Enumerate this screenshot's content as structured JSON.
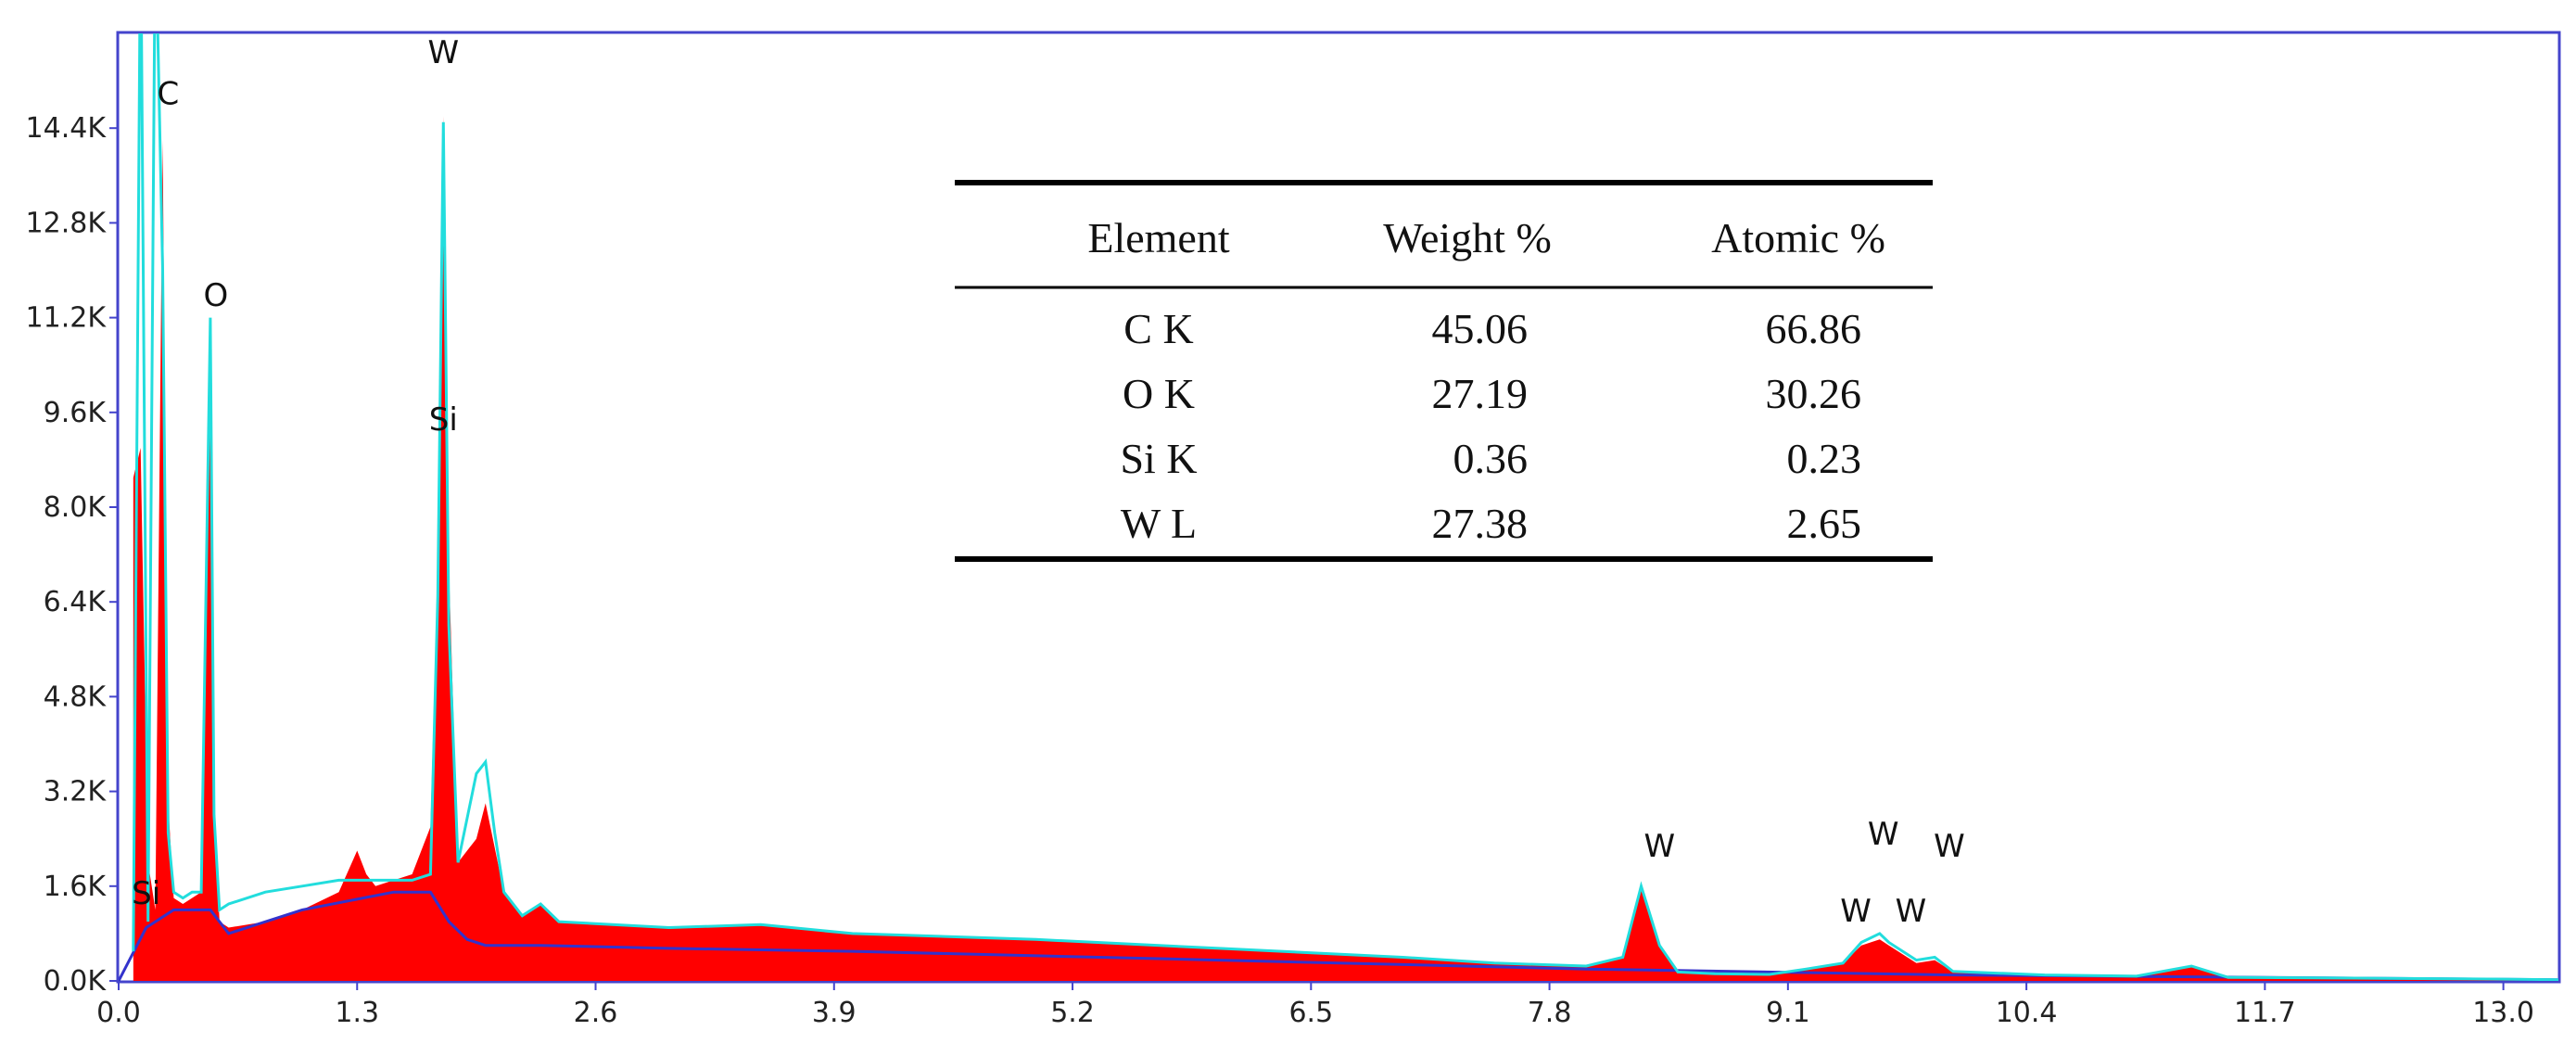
{
  "chart_data": {
    "type": "area",
    "title": "",
    "xlabel": "",
    "ylabel": "",
    "xlim": [
      0.0,
      13.3
    ],
    "ylim": [
      0,
      16000
    ],
    "grid": false,
    "x_ticks": [
      "0.0",
      "1.3",
      "2.6",
      "3.9",
      "5.2",
      "6.5",
      "7.8",
      "9.1",
      "10.4",
      "11.7",
      "13.0"
    ],
    "y_ticks": [
      "0.0K",
      "1.6K",
      "3.2K",
      "4.8K",
      "6.4K",
      "8.0K",
      "9.6K",
      "11.2K",
      "12.8K",
      "14.4K"
    ],
    "colors": {
      "spectrum": "#ff0000",
      "fit": "#22dddd",
      "background": "#3333cc",
      "frame": "#4444cc"
    },
    "spectrum": {
      "x": [
        0.08,
        0.12,
        0.16,
        0.2,
        0.24,
        0.27,
        0.3,
        0.35,
        0.4,
        0.45,
        0.5,
        0.52,
        0.55,
        0.6,
        0.8,
        1.0,
        1.2,
        1.3,
        1.35,
        1.4,
        1.5,
        1.6,
        1.7,
        1.74,
        1.77,
        1.8,
        1.85,
        1.95,
        2.0,
        2.1,
        2.2,
        2.3,
        2.4,
        3.0,
        3.5,
        4.0,
        5.0,
        6.0,
        7.0,
        7.5,
        8.0,
        8.2,
        8.3,
        8.4,
        8.5,
        8.7,
        9.0,
        9.2,
        9.4,
        9.5,
        9.6,
        9.65,
        9.8,
        9.9,
        10.0,
        10.5,
        11.0,
        11.3,
        11.5,
        12.0,
        13.0,
        13.3
      ],
      "y": [
        8500,
        9000,
        2000,
        1200,
        14200,
        3000,
        1400,
        1300,
        1400,
        1500,
        11000,
        3000,
        1000,
        900,
        1000,
        1200,
        1500,
        2200,
        1800,
        1600,
        1700,
        1800,
        2600,
        7000,
        14600,
        7000,
        2000,
        2400,
        3000,
        1500,
        1100,
        1300,
        1000,
        900,
        950,
        800,
        700,
        550,
        400,
        300,
        250,
        400,
        1600,
        600,
        150,
        120,
        110,
        200,
        300,
        600,
        700,
        600,
        300,
        350,
        150,
        100,
        80,
        250,
        60,
        50,
        30,
        20
      ]
    },
    "fit": {
      "x": [
        0.08,
        0.12,
        0.16,
        0.2,
        0.24,
        0.27,
        0.3,
        0.35,
        0.4,
        0.45,
        0.5,
        0.52,
        0.55,
        0.6,
        0.8,
        1.0,
        1.2,
        1.3,
        1.35,
        1.4,
        1.5,
        1.6,
        1.7,
        1.74,
        1.77,
        1.8,
        1.85,
        1.95,
        2.0,
        2.05,
        2.1,
        2.2,
        2.3,
        2.4,
        3.0,
        3.5,
        4.0,
        5.0,
        6.0,
        7.0,
        7.5,
        8.0,
        8.2,
        8.3,
        8.4,
        8.5,
        8.7,
        9.0,
        9.2,
        9.4,
        9.5,
        9.6,
        9.65,
        9.8,
        9.9,
        10.0,
        10.5,
        11.0,
        11.3,
        11.5,
        12.0,
        13.0,
        13.3
      ],
      "y": [
        500,
        18000,
        1000,
        18000,
        12000,
        2500,
        1500,
        1400,
        1500,
        1500,
        11200,
        2800,
        1200,
        1300,
        1500,
        1600,
        1700,
        1700,
        1700,
        1700,
        1700,
        1700,
        1800,
        6500,
        14500,
        6000,
        2000,
        3500,
        3700,
        2500,
        1500,
        1100,
        1300,
        1000,
        900,
        950,
        800,
        700,
        550,
        400,
        300,
        250,
        400,
        1600,
        600,
        150,
        120,
        110,
        200,
        300,
        650,
        800,
        650,
        350,
        400,
        160,
        100,
        80,
        250,
        60,
        50,
        30,
        20
      ]
    },
    "background": {
      "x": [
        0.0,
        0.15,
        0.3,
        0.5,
        0.6,
        1.0,
        1.5,
        1.7,
        1.8,
        1.9,
        2.0,
        2.3,
        3.0,
        4.0,
        6.0,
        8.0,
        10.0,
        13.3
      ],
      "y": [
        0,
        900,
        1200,
        1200,
        800,
        1200,
        1500,
        1500,
        1000,
        700,
        600,
        600,
        550,
        500,
        350,
        200,
        100,
        20
      ]
    },
    "peak_labels": [
      {
        "text": "C",
        "x": 0.27,
        "y": 14800
      },
      {
        "text": "O",
        "x": 0.53,
        "y": 11400
      },
      {
        "text": "W",
        "x": 1.77,
        "y": 15500
      },
      {
        "text": "Si",
        "x": 1.77,
        "y": 9300
      },
      {
        "text": "Si",
        "x": 0.15,
        "y": 1300
      },
      {
        "text": "W",
        "x": 8.4,
        "y": 2100
      },
      {
        "text": "W",
        "x": 9.62,
        "y": 2300
      },
      {
        "text": "W",
        "x": 9.98,
        "y": 2100
      },
      {
        "text": "W",
        "x": 9.47,
        "y": 1000
      },
      {
        "text": "W",
        "x": 9.77,
        "y": 1000
      }
    ],
    "table": {
      "columns": [
        "Element",
        "Weight %",
        "Atomic %"
      ],
      "rows": [
        [
          "C K",
          "45.06",
          "66.86"
        ],
        [
          "O K",
          "27.19",
          "30.26"
        ],
        [
          "Si K",
          "0.36",
          "0.23"
        ],
        [
          "W L",
          "27.38",
          "2.65"
        ]
      ]
    }
  }
}
